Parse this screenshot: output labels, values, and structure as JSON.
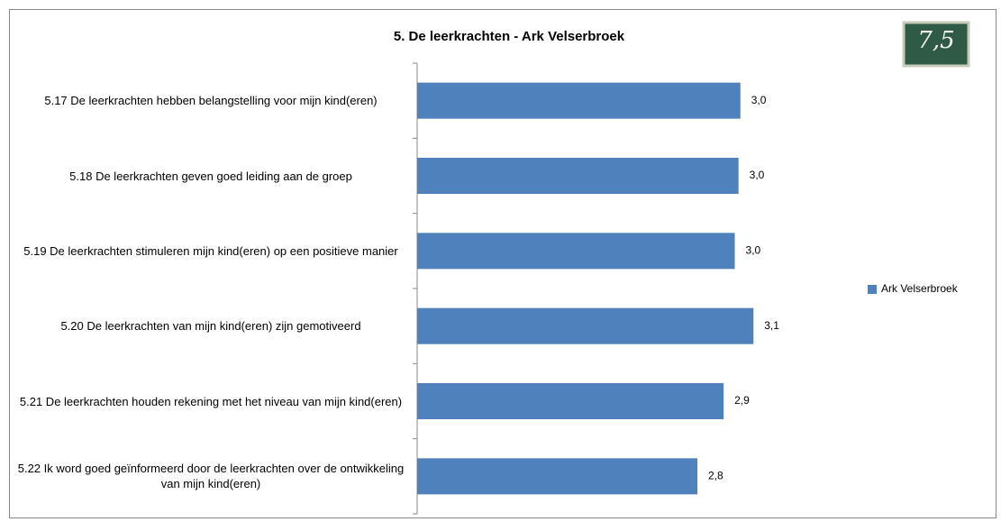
{
  "chart_data": {
    "type": "bar",
    "orientation": "horizontal",
    "title": "5. De leerkrachten - Ark Velserbroek",
    "categories": [
      "5.17 De leerkrachten hebben belangstelling voor mijn kind(eren)",
      "5.18 De leerkrachten geven goed leiding aan de groep",
      "5.19 De leerkrachten stimuleren mijn kind(eren) op een positieve manier",
      "5.20 De leerkrachten van mijn kind(eren) zijn gemotiveerd",
      "5.21 De leerkrachten houden rekening met het niveau van mijn kind(eren)",
      "5.22 Ik word goed geïnformeerd door de leerkrachten over de ontwikkeling van mijn kind(eren)"
    ],
    "series": [
      {
        "name": "Ark Velserbroek",
        "color": "#4f81bd",
        "values": [
          3.03,
          3.02,
          3.0,
          3.1,
          2.94,
          2.8
        ],
        "value_labels": [
          "3,0",
          "3,0",
          "3,0",
          "3,1",
          "2,9",
          "2,8"
        ]
      }
    ],
    "xlim": [
      1.3,
      3.2
    ],
    "legend": "right"
  },
  "badge": "7,5"
}
